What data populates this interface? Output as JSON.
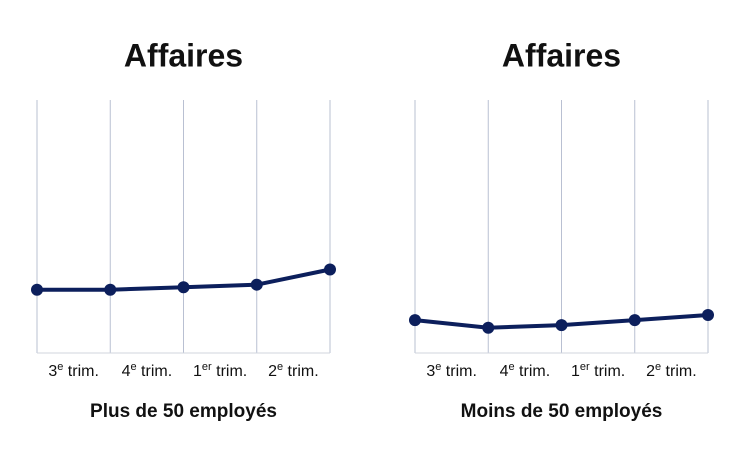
{
  "chart_data": [
    {
      "type": "line",
      "title": "Affaires",
      "subtitle": "Plus de 50 employés",
      "categories": [
        "3e trim.",
        "4e trim.",
        "1er trim.",
        "2e trim.",
        null
      ],
      "series": [
        {
          "color": "#0c1f5c",
          "values": [
            25,
            25,
            26,
            27,
            33
          ]
        }
      ],
      "ylim": [
        0,
        100
      ],
      "grid": true
    },
    {
      "type": "line",
      "title": "Affaires",
      "subtitle": "Moins de 50 employés",
      "categories": [
        "3e trim.",
        "4e trim.",
        "1er trim.",
        "2e trim.",
        null
      ],
      "series": [
        {
          "color": "#0c1f5c",
          "values": [
            13,
            10,
            11,
            13,
            15
          ]
        }
      ],
      "ylim": [
        0,
        100
      ],
      "grid": true
    }
  ]
}
